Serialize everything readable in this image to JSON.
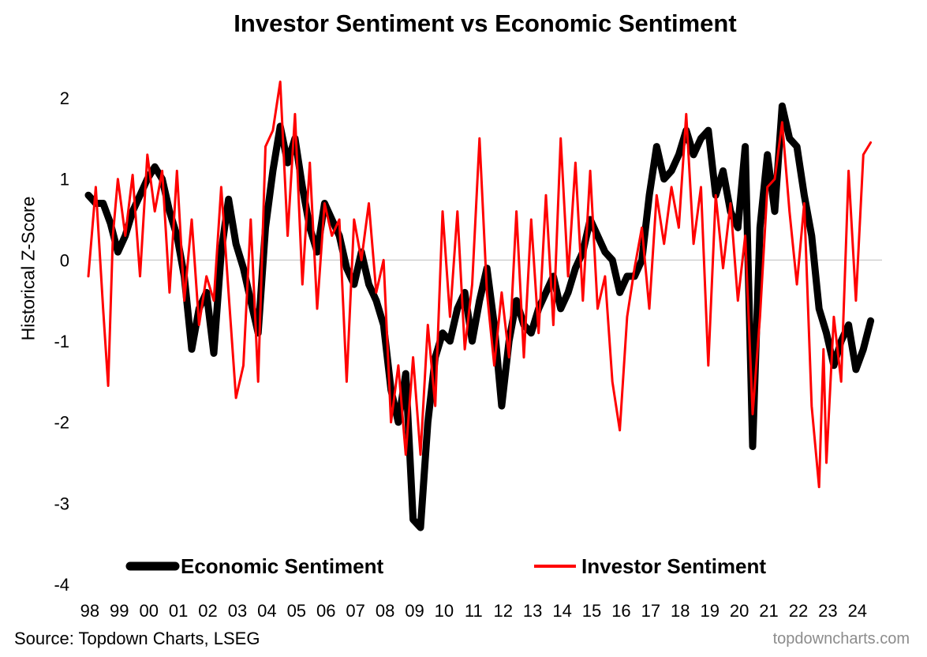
{
  "chart_data": {
    "type": "line",
    "title": "Investor Sentiment vs Economic Sentiment",
    "ylabel": "Historical Z-Score",
    "xlabel": "",
    "ylim": [
      -4,
      2
    ],
    "yticks": [
      2,
      1,
      0,
      -1,
      -2,
      -3,
      -4
    ],
    "xlim": [
      1998.0,
      2024.75
    ],
    "xtick_labels": [
      "98",
      "99",
      "00",
      "01",
      "02",
      "03",
      "04",
      "05",
      "06",
      "07",
      "08",
      "09",
      "10",
      "11",
      "12",
      "13",
      "14",
      "15",
      "16",
      "17",
      "18",
      "19",
      "20",
      "21",
      "22",
      "23",
      "24"
    ],
    "zero_line": true,
    "legend": "bottom",
    "series": [
      {
        "name": "Economic Sentiment",
        "color": "#000000",
        "points": [
          [
            1998.0,
            0.8
          ],
          [
            1998.25,
            0.7
          ],
          [
            1998.5,
            0.7
          ],
          [
            1998.75,
            0.45
          ],
          [
            1999.0,
            0.1
          ],
          [
            1999.25,
            0.3
          ],
          [
            1999.5,
            0.6
          ],
          [
            1999.75,
            0.8
          ],
          [
            2000.0,
            1.0
          ],
          [
            2000.25,
            1.15
          ],
          [
            2000.5,
            1.0
          ],
          [
            2000.75,
            0.6
          ],
          [
            2001.0,
            0.3
          ],
          [
            2001.25,
            -0.2
          ],
          [
            2001.5,
            -1.1
          ],
          [
            2001.75,
            -0.6
          ],
          [
            2002.0,
            -0.4
          ],
          [
            2002.25,
            -1.15
          ],
          [
            2002.5,
            0.1
          ],
          [
            2002.75,
            0.75
          ],
          [
            2003.0,
            0.2
          ],
          [
            2003.25,
            -0.1
          ],
          [
            2003.5,
            -0.5
          ],
          [
            2003.75,
            -0.9
          ],
          [
            2004.0,
            0.4
          ],
          [
            2004.25,
            1.1
          ],
          [
            2004.5,
            1.65
          ],
          [
            2004.75,
            1.2
          ],
          [
            2005.0,
            1.5
          ],
          [
            2005.25,
            0.9
          ],
          [
            2005.5,
            0.4
          ],
          [
            2005.75,
            0.1
          ],
          [
            2006.0,
            0.7
          ],
          [
            2006.25,
            0.5
          ],
          [
            2006.5,
            0.3
          ],
          [
            2006.75,
            -0.1
          ],
          [
            2007.0,
            -0.3
          ],
          [
            2007.25,
            0.1
          ],
          [
            2007.5,
            -0.3
          ],
          [
            2007.75,
            -0.5
          ],
          [
            2008.0,
            -0.8
          ],
          [
            2008.25,
            -1.6
          ],
          [
            2008.5,
            -2.0
          ],
          [
            2008.75,
            -1.4
          ],
          [
            2009.0,
            -3.2
          ],
          [
            2009.25,
            -3.3
          ],
          [
            2009.5,
            -2.0
          ],
          [
            2009.75,
            -1.2
          ],
          [
            2010.0,
            -0.9
          ],
          [
            2010.25,
            -1.0
          ],
          [
            2010.5,
            -0.6
          ],
          [
            2010.75,
            -0.4
          ],
          [
            2011.0,
            -1.0
          ],
          [
            2011.25,
            -0.5
          ],
          [
            2011.5,
            -0.1
          ],
          [
            2011.75,
            -0.8
          ],
          [
            2012.0,
            -1.8
          ],
          [
            2012.25,
            -1.0
          ],
          [
            2012.5,
            -0.5
          ],
          [
            2012.75,
            -0.8
          ],
          [
            2013.0,
            -0.9
          ],
          [
            2013.25,
            -0.6
          ],
          [
            2013.5,
            -0.4
          ],
          [
            2013.75,
            -0.2
          ],
          [
            2014.0,
            -0.6
          ],
          [
            2014.25,
            -0.4
          ],
          [
            2014.5,
            -0.1
          ],
          [
            2014.75,
            0.1
          ],
          [
            2015.0,
            0.5
          ],
          [
            2015.25,
            0.3
          ],
          [
            2015.5,
            0.1
          ],
          [
            2015.75,
            0.0
          ],
          [
            2016.0,
            -0.4
          ],
          [
            2016.25,
            -0.2
          ],
          [
            2016.5,
            -0.2
          ],
          [
            2016.75,
            0.0
          ],
          [
            2017.0,
            0.8
          ],
          [
            2017.25,
            1.4
          ],
          [
            2017.5,
            1.0
          ],
          [
            2017.75,
            1.1
          ],
          [
            2018.0,
            1.3
          ],
          [
            2018.25,
            1.6
          ],
          [
            2018.5,
            1.3
          ],
          [
            2018.75,
            1.5
          ],
          [
            2019.0,
            1.6
          ],
          [
            2019.25,
            0.8
          ],
          [
            2019.5,
            1.1
          ],
          [
            2019.75,
            0.6
          ],
          [
            2020.0,
            0.4
          ],
          [
            2020.25,
            1.4
          ],
          [
            2020.5,
            -2.3
          ],
          [
            2020.75,
            0.4
          ],
          [
            2021.0,
            1.3
          ],
          [
            2021.25,
            0.6
          ],
          [
            2021.5,
            1.9
          ],
          [
            2021.75,
            1.5
          ],
          [
            2022.0,
            1.4
          ],
          [
            2022.25,
            0.8
          ],
          [
            2022.5,
            0.3
          ],
          [
            2022.75,
            -0.6
          ],
          [
            2023.0,
            -0.9
          ],
          [
            2023.25,
            -1.3
          ],
          [
            2023.5,
            -1.0
          ],
          [
            2023.75,
            -0.8
          ],
          [
            2024.0,
            -1.35
          ],
          [
            2024.25,
            -1.1
          ],
          [
            2024.5,
            -0.75
          ]
        ]
      },
      {
        "name": "Investor Sentiment",
        "color": "#ff0000",
        "points": [
          [
            1998.0,
            -0.2
          ],
          [
            1998.25,
            0.9
          ],
          [
            1998.5,
            -0.6
          ],
          [
            1998.67,
            -1.55
          ],
          [
            1998.83,
            0.3
          ],
          [
            1999.0,
            1.0
          ],
          [
            1999.25,
            0.3
          ],
          [
            1999.5,
            1.05
          ],
          [
            1999.75,
            -0.2
          ],
          [
            2000.0,
            1.3
          ],
          [
            2000.25,
            0.6
          ],
          [
            2000.5,
            1.1
          ],
          [
            2000.75,
            -0.4
          ],
          [
            2001.0,
            1.1
          ],
          [
            2001.25,
            -0.5
          ],
          [
            2001.5,
            0.5
          ],
          [
            2001.75,
            -0.8
          ],
          [
            2002.0,
            -0.2
          ],
          [
            2002.25,
            -0.5
          ],
          [
            2002.5,
            0.9
          ],
          [
            2002.75,
            -0.4
          ],
          [
            2003.0,
            -1.7
          ],
          [
            2003.25,
            -1.3
          ],
          [
            2003.5,
            0.5
          ],
          [
            2003.75,
            -1.5
          ],
          [
            2004.0,
            1.4
          ],
          [
            2004.25,
            1.6
          ],
          [
            2004.5,
            2.2
          ],
          [
            2004.75,
            0.3
          ],
          [
            2005.0,
            1.8
          ],
          [
            2005.25,
            -0.3
          ],
          [
            2005.5,
            1.2
          ],
          [
            2005.75,
            -0.6
          ],
          [
            2006.0,
            0.7
          ],
          [
            2006.25,
            0.3
          ],
          [
            2006.5,
            0.5
          ],
          [
            2006.75,
            -1.5
          ],
          [
            2007.0,
            0.5
          ],
          [
            2007.25,
            0.0
          ],
          [
            2007.5,
            0.7
          ],
          [
            2007.75,
            -0.4
          ],
          [
            2008.0,
            0.0
          ],
          [
            2008.25,
            -2.0
          ],
          [
            2008.5,
            -1.3
          ],
          [
            2008.75,
            -2.4
          ],
          [
            2009.0,
            -1.2
          ],
          [
            2009.25,
            -2.4
          ],
          [
            2009.5,
            -0.8
          ],
          [
            2009.75,
            -1.8
          ],
          [
            2010.0,
            0.6
          ],
          [
            2010.25,
            -0.7
          ],
          [
            2010.5,
            0.6
          ],
          [
            2010.75,
            -1.1
          ],
          [
            2011.0,
            -0.3
          ],
          [
            2011.25,
            1.5
          ],
          [
            2011.5,
            -0.4
          ],
          [
            2011.75,
            -1.3
          ],
          [
            2012.0,
            -0.4
          ],
          [
            2012.25,
            -1.2
          ],
          [
            2012.5,
            0.6
          ],
          [
            2012.75,
            -1.2
          ],
          [
            2013.0,
            0.5
          ],
          [
            2013.25,
            -0.9
          ],
          [
            2013.5,
            0.8
          ],
          [
            2013.75,
            -0.8
          ],
          [
            2014.0,
            1.5
          ],
          [
            2014.25,
            -0.2
          ],
          [
            2014.5,
            1.2
          ],
          [
            2014.75,
            -0.5
          ],
          [
            2015.0,
            1.1
          ],
          [
            2015.25,
            -0.6
          ],
          [
            2015.5,
            -0.2
          ],
          [
            2015.75,
            -1.5
          ],
          [
            2016.0,
            -2.1
          ],
          [
            2016.25,
            -0.7
          ],
          [
            2016.5,
            -0.1
          ],
          [
            2016.75,
            0.4
          ],
          [
            2017.0,
            -0.6
          ],
          [
            2017.25,
            0.8
          ],
          [
            2017.5,
            0.2
          ],
          [
            2017.75,
            0.9
          ],
          [
            2018.0,
            0.4
          ],
          [
            2018.25,
            1.8
          ],
          [
            2018.5,
            0.2
          ],
          [
            2018.75,
            0.9
          ],
          [
            2019.0,
            -1.3
          ],
          [
            2019.25,
            0.8
          ],
          [
            2019.5,
            -0.1
          ],
          [
            2019.75,
            0.7
          ],
          [
            2020.0,
            -0.5
          ],
          [
            2020.25,
            0.3
          ],
          [
            2020.5,
            -1.9
          ],
          [
            2020.75,
            -0.7
          ],
          [
            2021.0,
            0.9
          ],
          [
            2021.25,
            1.0
          ],
          [
            2021.5,
            1.7
          ],
          [
            2021.75,
            0.6
          ],
          [
            2022.0,
            -0.3
          ],
          [
            2022.25,
            0.7
          ],
          [
            2022.5,
            -1.8
          ],
          [
            2022.75,
            -2.8
          ],
          [
            2022.9,
            -1.1
          ],
          [
            2023.0,
            -2.5
          ],
          [
            2023.25,
            -0.7
          ],
          [
            2023.5,
            -1.5
          ],
          [
            2023.75,
            1.1
          ],
          [
            2024.0,
            -0.5
          ],
          [
            2024.25,
            1.3
          ],
          [
            2024.5,
            1.45
          ]
        ]
      }
    ],
    "source": "Source: Topdown Charts, LSEG",
    "credit": "topdowncharts.com"
  }
}
